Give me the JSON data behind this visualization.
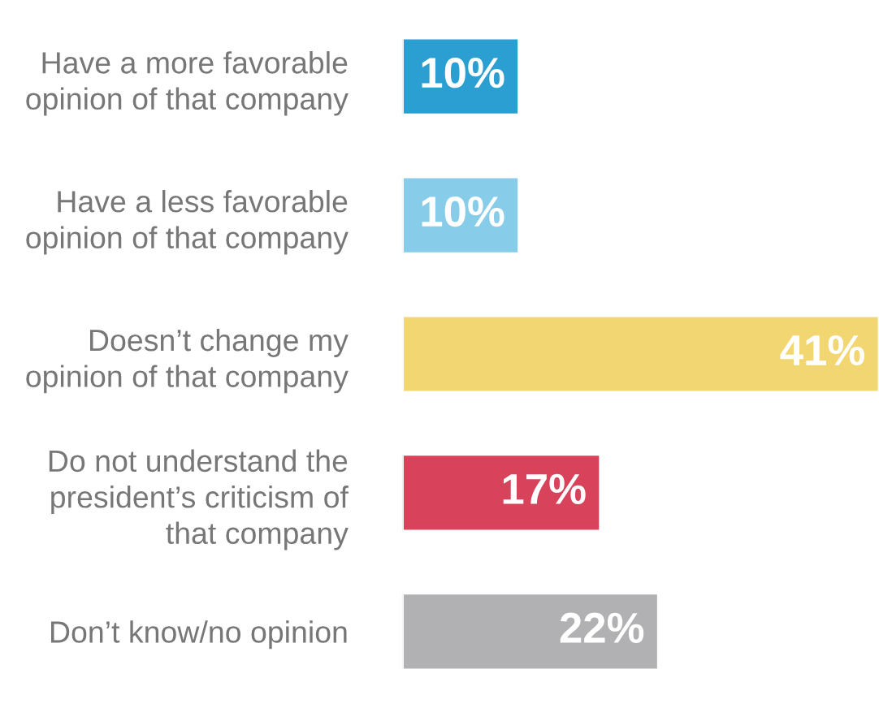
{
  "chart_data": {
    "type": "bar",
    "orientation": "horizontal",
    "data_labels": true,
    "categories": [
      "Have a more favorable\nopinion of that company",
      "Have a less favorable\nopinion of that company",
      "Doesn’t change my\nopinion of that company",
      "Do not understand the\npresident’s criticism of\nthat company",
      "Don’t know/no opinion"
    ],
    "values": [
      10,
      10,
      41,
      17,
      22
    ],
    "colors": [
      "#2c9fd2",
      "#87cde9",
      "#f2d672",
      "#d8435b",
      "#b1b1b4"
    ],
    "value_labels": [
      "10%",
      "10%",
      "41%",
      "17%",
      "22%"
    ]
  }
}
